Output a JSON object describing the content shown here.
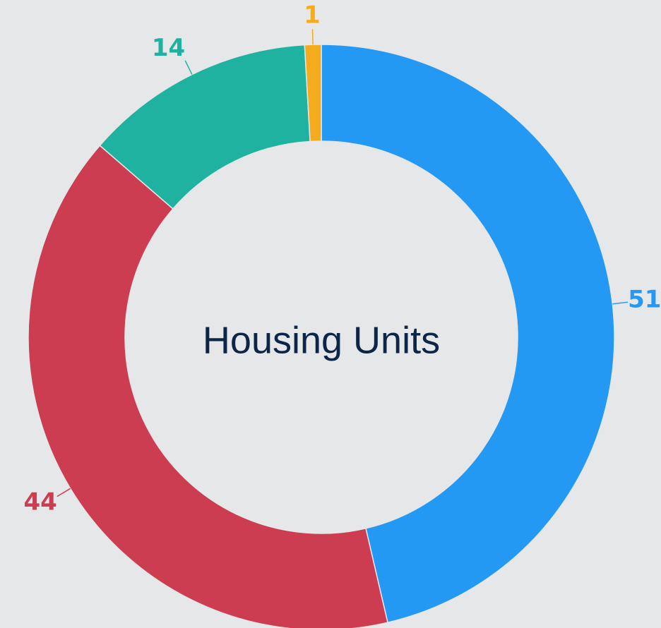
{
  "chart_data": {
    "type": "donut",
    "title": "Housing Units",
    "values": [
      51,
      44,
      14,
      1
    ],
    "colors": [
      "#2399f3",
      "#cc3d52",
      "#20b2a0",
      "#f5ab1e"
    ]
  }
}
